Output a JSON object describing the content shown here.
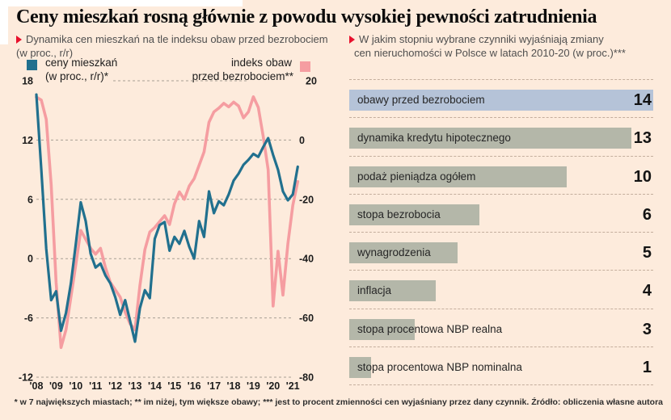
{
  "page": {
    "title": "Ceny mieszkań rosną głównie z powodu wysokiej pewności zatrudnienia",
    "footnote": "* w 7 największych miastach; ** im niżej, tym większe obawy; *** jest to procent zmienności cen wyjaśniany przez dany czynnik. Źródło: obliczenia własne autora",
    "background_color": "#fdebdc",
    "accent_red": "#e8112d"
  },
  "chart_data": [
    {
      "type": "line",
      "title": "Dynamika cen mieszkań na tle indeksu obaw przed bezrobociem (w proc., r/r)",
      "subtitle_line1": "Dynamika cen mieszkań na tle indeksu obaw przed bezrobociem",
      "subtitle_line2": "(w proc., r/r)",
      "legend": {
        "series1_line1": "ceny mieszkań",
        "series1_line2": "(w proc., r/r)*",
        "series2_line1": "indeks obaw",
        "series2_line2": "przed bezrobociem**"
      },
      "x_start_year": 2008,
      "x_step_years": 0.25,
      "x_tick_labels": [
        "'08",
        "'09",
        "'10",
        "'11",
        "'12",
        "'13",
        "'14",
        "'15",
        "'16",
        "'17",
        "'18",
        "'19",
        "'20",
        "'21"
      ],
      "left_axis": {
        "ticks": [
          18,
          12,
          6,
          0,
          -6,
          -12
        ],
        "range": [
          -12,
          18
        ]
      },
      "right_axis": {
        "ticks": [
          20,
          0,
          -20,
          -40,
          -60,
          -80
        ],
        "range": [
          -80,
          20
        ]
      },
      "grid": "dashed-horizontal",
      "series": [
        {
          "name": "ceny mieszkań (w proc., r/r)*",
          "axis": "left",
          "color": "#21708e",
          "stroke_width": 3.2,
          "values": [
            16.6,
            9.0,
            1.0,
            -4.2,
            -3.3,
            -7.3,
            -5.5,
            -2.5,
            1.5,
            5.7,
            3.8,
            0.5,
            -0.9,
            -0.5,
            -1.7,
            -2.5,
            -3.9,
            -5.7,
            -4.2,
            -6.3,
            -8.4,
            -5.0,
            -3.2,
            -4.0,
            2.0,
            3.4,
            3.7,
            0.8,
            2.2,
            1.5,
            2.8,
            1.2,
            0.0,
            3.8,
            2.2,
            6.8,
            4.6,
            5.8,
            5.4,
            6.5,
            7.9,
            8.6,
            9.5,
            10.0,
            10.6,
            10.3,
            11.3,
            12.2,
            10.5,
            9.0,
            6.8,
            5.9,
            6.5,
            9.3
          ]
        },
        {
          "name": "indeks obaw przed bezrobociem**",
          "axis": "right",
          "color": "#f59da1",
          "stroke_width": 3.6,
          "values": [
            14.5,
            13.5,
            7.0,
            -15,
            -48,
            -70,
            -64,
            -53,
            -42,
            -30.5,
            -33.5,
            -36.5,
            -38.5,
            -36.5,
            -43,
            -48,
            -50.5,
            -53,
            -58,
            -62,
            -64,
            -49,
            -37,
            -31,
            -29.5,
            -27.5,
            -25.5,
            -28.5,
            -21.5,
            -17.5,
            -20,
            -15.5,
            -13,
            -8.5,
            -4,
            6,
            9.5,
            10.8,
            12.4,
            11.2,
            12.8,
            11.5,
            7.5,
            9.5,
            14.6,
            11,
            1.2,
            -10,
            -56,
            -37.5,
            -52.3,
            -35,
            -22,
            -14
          ]
        }
      ]
    },
    {
      "type": "bar",
      "title": "W jakim stopniu wybrane czynniki wyjaśniają zmiany cen nieruchomości w Polsce w latach 2010-20 (w proc.)***",
      "subtitle_line1": "W jakim stopniu wybrane czynniki wyjaśniają zmiany",
      "subtitle_line2": "cen nieruchomości w Polsce w latach 2010-20 (w proc.)***",
      "categories": [
        "obawy przed bezrobociem",
        "dynamika kredytu hipotecznego",
        "podaż pieniądza ogółem",
        "stopa bezrobocia",
        "wynagrodzenia",
        "inflacja",
        "stopa procentowa NBP realna",
        "stopa procentowa NBP nominalna"
      ],
      "values": [
        14,
        13,
        10,
        6,
        5,
        4,
        3,
        1
      ],
      "xlim": [
        0,
        14
      ],
      "highlight_index": 0,
      "highlight_color": "#b5c3d8",
      "bar_color": "#b4b7a9"
    }
  ]
}
